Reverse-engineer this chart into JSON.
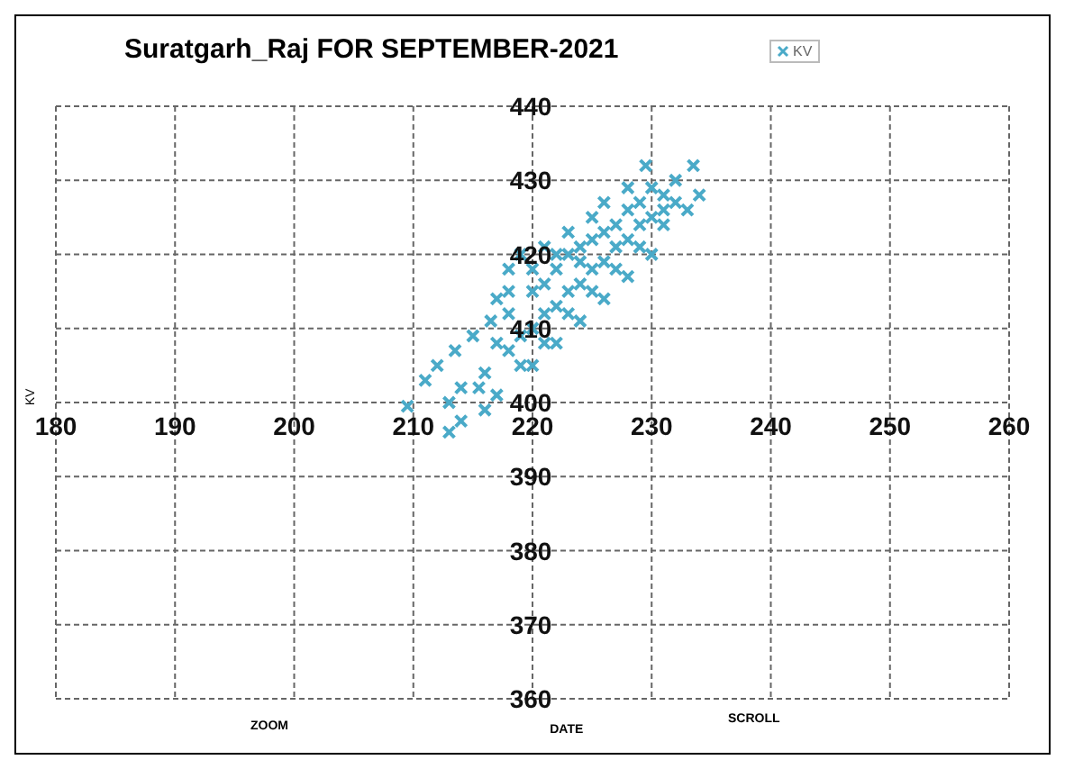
{
  "chart_data": {
    "type": "scatter",
    "title": "Suratgarh_Raj FOR SEPTEMBER-2021",
    "xlabel": "DATE",
    "ylabel": "KV",
    "annotations": [
      "ZOOM",
      "SCROLL"
    ],
    "series": [
      {
        "name": "KV",
        "color": "#4aaac8",
        "x": [
          209.5,
          213,
          214,
          211,
          212,
          213.5,
          215,
          216.5,
          217,
          218,
          219,
          221,
          223,
          225,
          226,
          228,
          229.5,
          230,
          231,
          232,
          233.5,
          234,
          233,
          231,
          229,
          227,
          225,
          223,
          221,
          219,
          217,
          216,
          215.5,
          216,
          218,
          220,
          222,
          224,
          226,
          228,
          230,
          232,
          218,
          220,
          222,
          224,
          226,
          228,
          220,
          222,
          224,
          226,
          228,
          230,
          219,
          221,
          223,
          225,
          227,
          229,
          231,
          217,
          218,
          220,
          222,
          224,
          221,
          223,
          225,
          227,
          229,
          214,
          213
        ],
        "values": [
          399.5,
          396,
          397.5,
          403,
          405,
          407,
          409,
          411,
          414,
          418,
          420,
          421,
          423,
          425,
          427,
          429,
          432,
          429,
          428,
          430,
          432,
          428,
          426,
          424,
          421,
          418,
          415,
          412,
          408,
          405,
          401,
          399,
          402,
          404,
          407,
          410,
          413,
          416,
          419,
          422,
          425,
          427,
          412,
          415,
          418,
          421,
          423,
          426,
          405,
          408,
          411,
          414,
          417,
          420,
          409,
          412,
          415,
          418,
          421,
          424,
          426,
          408,
          415,
          418,
          420,
          419,
          416,
          420,
          422,
          424,
          427,
          402,
          400
        ]
      }
    ],
    "xlim": [
      180,
      260
    ],
    "xticks": [
      180,
      190,
      200,
      210,
      220,
      230,
      240,
      250,
      260
    ],
    "ylim": [
      360,
      440
    ],
    "yticks": [
      360,
      370,
      380,
      390,
      400,
      410,
      420,
      430,
      440
    ],
    "grid": true,
    "legend": "top",
    "marker": "cross"
  }
}
